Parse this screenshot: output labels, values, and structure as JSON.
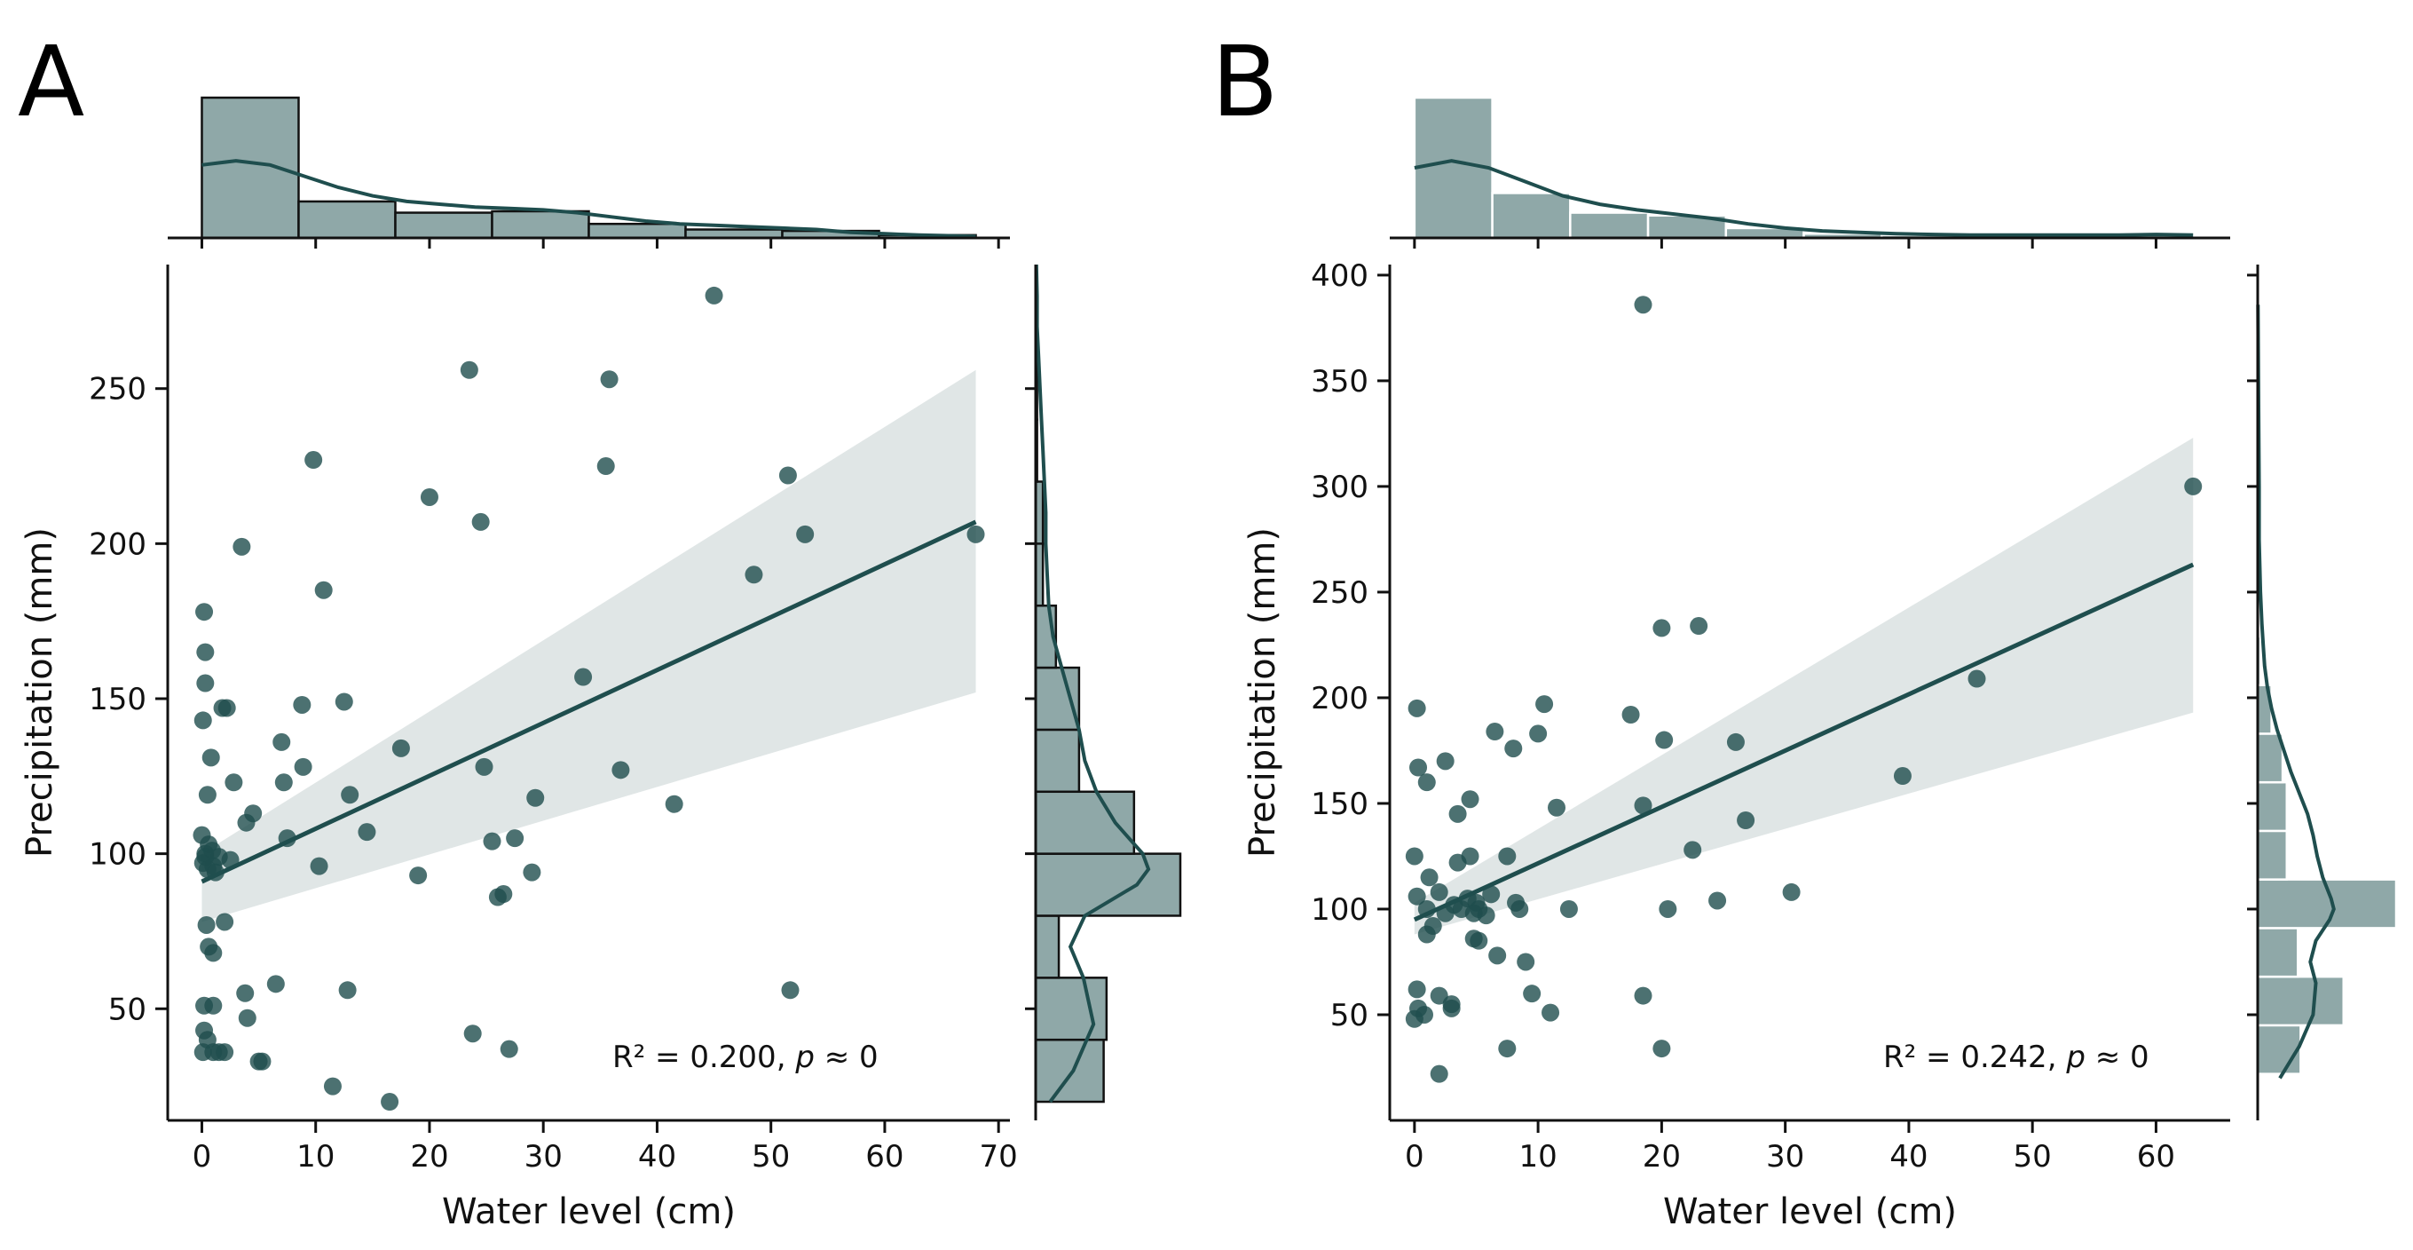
{
  "colors": {
    "primary": "#1f4e4e",
    "band": "#d5dddd",
    "hist_fill": "#8fa8a8",
    "hist_edge_a": "#111111",
    "hist_edge_b": "#ffffff"
  },
  "chart_data": [
    {
      "id": "A",
      "type": "scatter",
      "panel_label": "A",
      "xlabel": "Water level (cm)",
      "ylabel": "Precipitation (mm)",
      "xlim": [
        -3,
        71
      ],
      "ylim": [
        14,
        290
      ],
      "xticks": [
        0,
        10,
        20,
        30,
        40,
        50,
        60,
        70
      ],
      "yticks": [
        50,
        100,
        150,
        200,
        250
      ],
      "annotation": {
        "r2": "R² = 0.200, ",
        "p_sym": "p",
        "p_rest": " ≈ 0"
      },
      "points": [
        [
          0.2,
          178
        ],
        [
          0.3,
          165
        ],
        [
          0.3,
          155
        ],
        [
          0.1,
          143
        ],
        [
          1.8,
          147
        ],
        [
          2.2,
          147
        ],
        [
          0.8,
          131
        ],
        [
          0.5,
          119
        ],
        [
          2.8,
          123
        ],
        [
          0,
          106
        ],
        [
          0.3,
          100
        ],
        [
          0.1,
          97
        ],
        [
          0.5,
          95
        ],
        [
          1,
          96
        ],
        [
          1.2,
          94
        ],
        [
          0.6,
          103
        ],
        [
          0.9,
          101
        ],
        [
          1.5,
          99
        ],
        [
          2.5,
          98
        ],
        [
          0.3,
          99
        ],
        [
          0.4,
          77
        ],
        [
          0.6,
          70
        ],
        [
          1,
          68
        ],
        [
          2,
          78
        ],
        [
          0.2,
          51
        ],
        [
          1,
          51
        ],
        [
          0.2,
          43
        ],
        [
          0.5,
          40
        ],
        [
          1,
          36
        ],
        [
          1.5,
          36
        ],
        [
          2,
          36
        ],
        [
          0.1,
          36
        ],
        [
          3.5,
          199
        ],
        [
          3.9,
          110
        ],
        [
          4.5,
          113
        ],
        [
          3.8,
          55
        ],
        [
          4,
          47
        ],
        [
          5,
          33
        ],
        [
          5.3,
          33
        ],
        [
          6.5,
          58
        ],
        [
          7,
          136
        ],
        [
          7.2,
          123
        ],
        [
          7.5,
          105
        ],
        [
          8.8,
          148
        ],
        [
          8.9,
          128
        ],
        [
          9.8,
          227
        ],
        [
          10.3,
          96
        ],
        [
          10.7,
          185
        ],
        [
          11.5,
          25
        ],
        [
          12.5,
          149
        ],
        [
          12.8,
          56
        ],
        [
          13,
          119
        ],
        [
          14.5,
          107
        ],
        [
          16.5,
          20
        ],
        [
          17.5,
          134
        ],
        [
          19,
          93
        ],
        [
          20,
          215
        ],
        [
          23.5,
          256
        ],
        [
          23.8,
          42
        ],
        [
          24.5,
          207
        ],
        [
          24.8,
          128
        ],
        [
          25.5,
          104
        ],
        [
          26,
          86
        ],
        [
          26.5,
          87
        ],
        [
          27,
          37
        ],
        [
          27.5,
          105
        ],
        [
          29,
          94
        ],
        [
          29.3,
          118
        ],
        [
          33.5,
          157
        ],
        [
          35.5,
          225
        ],
        [
          35.8,
          253
        ],
        [
          36.8,
          127
        ],
        [
          41.5,
          116
        ],
        [
          45,
          280
        ],
        [
          48.5,
          190
        ],
        [
          51.5,
          222
        ],
        [
          51.7,
          56
        ],
        [
          53,
          203
        ],
        [
          68,
          203
        ]
      ],
      "regression": {
        "x": [
          0,
          68
        ],
        "y": [
          91,
          207
        ],
        "ci_lower": [
          78,
          152
        ],
        "ci_upper": [
          100,
          256
        ]
      },
      "top_hist": {
        "edges": [
          0,
          8.5,
          17,
          25.5,
          34,
          42.5,
          51,
          59.5,
          68
        ],
        "heights": [
          1.0,
          0.26,
          0.18,
          0.19,
          0.1,
          0.06,
          0.05,
          0.02
        ]
      },
      "top_kde": {
        "x": [
          0,
          3,
          6,
          9,
          12,
          15,
          18,
          21,
          24,
          27,
          30,
          33,
          36,
          39,
          42,
          45,
          48,
          51,
          54,
          57,
          60,
          63,
          66,
          68
        ],
        "y": [
          0.52,
          0.55,
          0.52,
          0.44,
          0.36,
          0.3,
          0.26,
          0.24,
          0.22,
          0.21,
          0.2,
          0.18,
          0.15,
          0.12,
          0.1,
          0.09,
          0.08,
          0.07,
          0.06,
          0.04,
          0.03,
          0.02,
          0.015,
          0.01
        ]
      },
      "right_hist": {
        "edges": [
          20,
          40,
          60,
          80,
          100,
          120,
          140,
          160,
          180,
          200,
          220,
          240,
          260,
          280
        ],
        "widths": [
          0.47,
          0.49,
          0.16,
          1.0,
          0.68,
          0.3,
          0.3,
          0.14,
          0.05,
          0.05,
          0.01,
          0.01,
          0.01
        ]
      },
      "right_kde": {
        "y": [
          20,
          30,
          45,
          60,
          70,
          80,
          90,
          95,
          100,
          110,
          120,
          130,
          140,
          150,
          160,
          170,
          180,
          190,
          200,
          210,
          220,
          230,
          240,
          250,
          260,
          270,
          280,
          290
        ],
        "x": [
          0.1,
          0.26,
          0.4,
          0.33,
          0.24,
          0.34,
          0.7,
          0.78,
          0.74,
          0.55,
          0.42,
          0.34,
          0.3,
          0.24,
          0.18,
          0.12,
          0.09,
          0.08,
          0.07,
          0.07,
          0.06,
          0.05,
          0.04,
          0.03,
          0.02,
          0.01,
          0.01,
          0.005
        ]
      }
    },
    {
      "id": "B",
      "type": "scatter",
      "panel_label": "B",
      "xlabel": "Water level (cm)",
      "ylabel": "Precipitation (mm)",
      "xlim": [
        -2,
        66
      ],
      "ylim": [
        0,
        405
      ],
      "xticks": [
        0,
        10,
        20,
        30,
        40,
        50,
        60
      ],
      "yticks": [
        50,
        100,
        150,
        200,
        250,
        300,
        350,
        400
      ],
      "annotation": {
        "r2": "R² = 0.242, ",
        "p_sym": "p",
        "p_rest": " ≈ 0"
      },
      "points": [
        [
          0.2,
          195
        ],
        [
          0.3,
          167
        ],
        [
          1,
          160
        ],
        [
          2.5,
          170
        ],
        [
          3.5,
          145
        ],
        [
          4.5,
          152
        ],
        [
          6.5,
          184
        ],
        [
          8,
          176
        ],
        [
          10,
          183
        ],
        [
          10.5,
          197
        ],
        [
          0,
          125
        ],
        [
          3.5,
          122
        ],
        [
          4.5,
          125
        ],
        [
          7.5,
          125
        ],
        [
          1.2,
          115
        ],
        [
          0.2,
          106
        ],
        [
          1,
          100
        ],
        [
          2,
          108
        ],
        [
          2.5,
          98
        ],
        [
          3.2,
          102
        ],
        [
          3.8,
          100
        ],
        [
          4.3,
          105
        ],
        [
          4.8,
          98
        ],
        [
          5,
          103
        ],
        [
          5.2,
          100
        ],
        [
          5.8,
          97
        ],
        [
          6.2,
          107
        ],
        [
          8.2,
          103
        ],
        [
          8.5,
          100
        ],
        [
          1.5,
          92
        ],
        [
          1,
          88
        ],
        [
          4.8,
          86
        ],
        [
          5.2,
          85
        ],
        [
          6.7,
          78
        ],
        [
          9,
          75
        ],
        [
          0.2,
          62
        ],
        [
          0.3,
          53
        ],
        [
          0.8,
          50
        ],
        [
          0,
          48
        ],
        [
          2,
          59
        ],
        [
          3,
          55
        ],
        [
          3,
          53
        ],
        [
          2,
          22
        ],
        [
          7.5,
          34
        ],
        [
          9.5,
          60
        ],
        [
          11,
          51
        ],
        [
          11.5,
          148
        ],
        [
          12.5,
          100
        ],
        [
          17.5,
          192
        ],
        [
          18.5,
          386
        ],
        [
          18.5,
          149
        ],
        [
          18.5,
          59
        ],
        [
          20,
          34
        ],
        [
          20,
          233
        ],
        [
          20.2,
          180
        ],
        [
          20.5,
          100
        ],
        [
          22.5,
          128
        ],
        [
          23,
          234
        ],
        [
          24.5,
          104
        ],
        [
          26,
          179
        ],
        [
          26.8,
          142
        ],
        [
          30.5,
          108
        ],
        [
          39.5,
          163
        ],
        [
          45.5,
          209
        ],
        [
          63,
          300
        ]
      ],
      "regression": {
        "x": [
          0,
          63
        ],
        "y": [
          95,
          263
        ],
        "ci_lower": [
          88,
          193
        ],
        "ci_upper": [
          103,
          323
        ]
      },
      "top_hist": {
        "edges": [
          0,
          6.3,
          12.6,
          18.9,
          25.2,
          31.5,
          37.8,
          44.1,
          50.4,
          56.7,
          63
        ],
        "heights": [
          1.0,
          0.32,
          0.18,
          0.16,
          0.07,
          0.03,
          0.02,
          0.01,
          0.01,
          0.02
        ]
      },
      "top_kde": {
        "x": [
          0,
          3,
          6,
          9,
          12,
          15,
          18,
          21,
          24,
          27,
          30,
          33,
          36,
          39,
          42,
          45,
          48,
          51,
          54,
          57,
          60,
          63
        ],
        "y": [
          0.5,
          0.55,
          0.5,
          0.4,
          0.3,
          0.24,
          0.2,
          0.17,
          0.14,
          0.1,
          0.07,
          0.05,
          0.04,
          0.03,
          0.025,
          0.02,
          0.02,
          0.02,
          0.02,
          0.02,
          0.025,
          0.02
        ]
      },
      "right_hist": {
        "edges": [
          22,
          45,
          68,
          91,
          114,
          137,
          160,
          183,
          206,
          229,
          252,
          275,
          298,
          321,
          344,
          367,
          386
        ],
        "widths": [
          0.31,
          0.62,
          0.29,
          1.0,
          0.21,
          0.21,
          0.18,
          0.1,
          0.02,
          0.01,
          0.01,
          0.01,
          0.01,
          0.01,
          0.01,
          0.01
        ]
      },
      "right_kde": {
        "y": [
          20,
          35,
          50,
          65,
          75,
          85,
          95,
          100,
          105,
          115,
          125,
          135,
          145,
          155,
          165,
          175,
          185,
          195,
          205,
          215,
          225,
          235,
          250,
          275,
          300,
          350,
          386
        ],
        "x": [
          0.16,
          0.3,
          0.4,
          0.42,
          0.38,
          0.42,
          0.52,
          0.55,
          0.53,
          0.47,
          0.43,
          0.4,
          0.36,
          0.3,
          0.24,
          0.19,
          0.14,
          0.1,
          0.07,
          0.05,
          0.04,
          0.03,
          0.02,
          0.01,
          0.01,
          0.005,
          0.002
        ]
      }
    }
  ]
}
